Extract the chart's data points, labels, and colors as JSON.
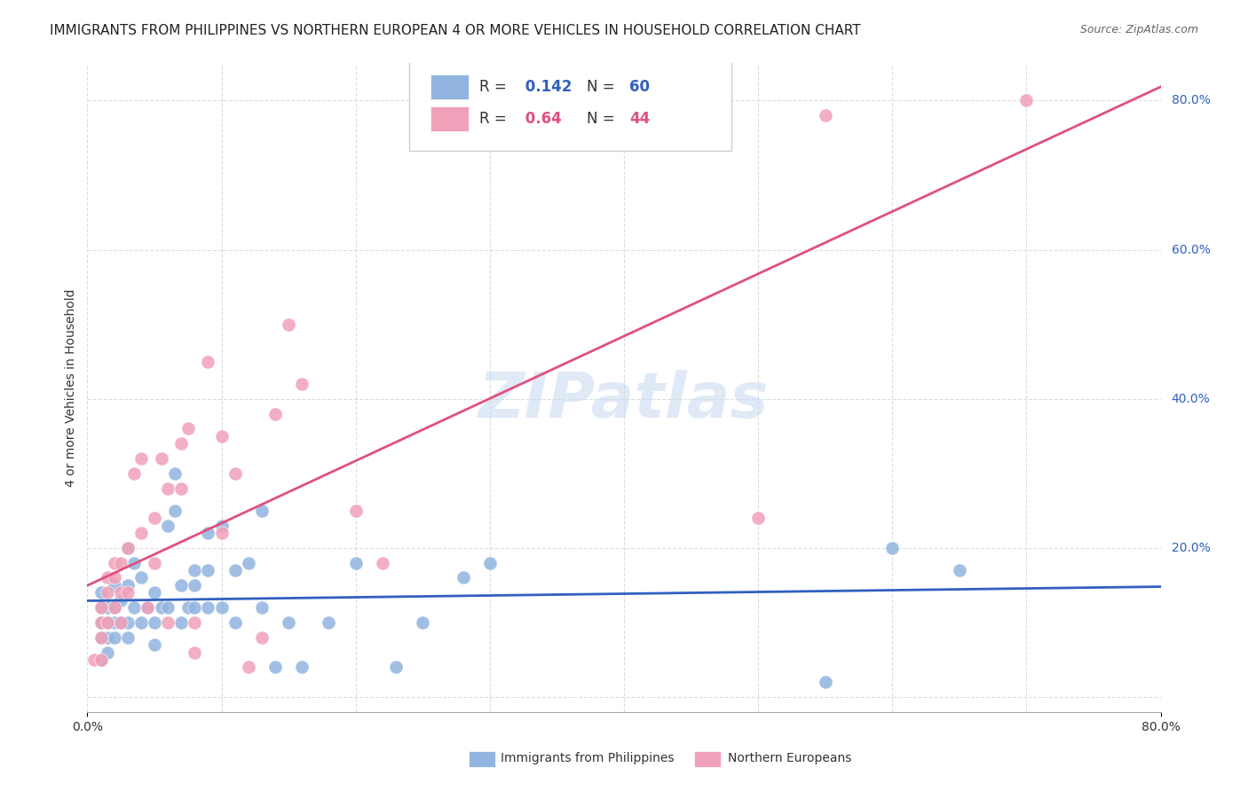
{
  "title": "IMMIGRANTS FROM PHILIPPINES VS NORTHERN EUROPEAN 4 OR MORE VEHICLES IN HOUSEHOLD CORRELATION CHART",
  "source": "Source: ZipAtlas.com",
  "ylabel": "4 or more Vehicles in Household",
  "xlim": [
    0.0,
    0.8
  ],
  "ylim": [
    -0.02,
    0.85
  ],
  "blue_R": 0.142,
  "blue_N": 60,
  "pink_R": 0.64,
  "pink_N": 44,
  "blue_color": "#91b4e0",
  "pink_color": "#f0a0b8",
  "blue_line_color": "#3060c0",
  "pink_line_color": "#e05080",
  "watermark": "ZIPatlas",
  "blue_scatter_x": [
    0.01,
    0.01,
    0.01,
    0.01,
    0.01,
    0.015,
    0.015,
    0.015,
    0.015,
    0.02,
    0.02,
    0.02,
    0.02,
    0.025,
    0.025,
    0.03,
    0.03,
    0.03,
    0.03,
    0.035,
    0.035,
    0.04,
    0.04,
    0.045,
    0.05,
    0.05,
    0.05,
    0.055,
    0.06,
    0.06,
    0.065,
    0.065,
    0.07,
    0.07,
    0.075,
    0.08,
    0.08,
    0.08,
    0.09,
    0.09,
    0.09,
    0.1,
    0.1,
    0.11,
    0.11,
    0.12,
    0.13,
    0.13,
    0.14,
    0.15,
    0.16,
    0.18,
    0.2,
    0.23,
    0.25,
    0.28,
    0.3,
    0.55,
    0.6,
    0.65
  ],
  "blue_scatter_y": [
    0.08,
    0.1,
    0.12,
    0.14,
    0.05,
    0.1,
    0.12,
    0.08,
    0.06,
    0.1,
    0.12,
    0.08,
    0.15,
    0.13,
    0.1,
    0.1,
    0.15,
    0.2,
    0.08,
    0.12,
    0.18,
    0.1,
    0.16,
    0.12,
    0.1,
    0.14,
    0.07,
    0.12,
    0.12,
    0.23,
    0.25,
    0.3,
    0.1,
    0.15,
    0.12,
    0.15,
    0.17,
    0.12,
    0.12,
    0.17,
    0.22,
    0.12,
    0.23,
    0.1,
    0.17,
    0.18,
    0.25,
    0.12,
    0.04,
    0.1,
    0.04,
    0.1,
    0.18,
    0.04,
    0.1,
    0.16,
    0.18,
    0.02,
    0.2,
    0.17
  ],
  "pink_scatter_x": [
    0.005,
    0.01,
    0.01,
    0.01,
    0.01,
    0.015,
    0.015,
    0.015,
    0.02,
    0.02,
    0.02,
    0.025,
    0.025,
    0.025,
    0.03,
    0.03,
    0.035,
    0.04,
    0.04,
    0.045,
    0.05,
    0.05,
    0.055,
    0.06,
    0.06,
    0.07,
    0.07,
    0.075,
    0.08,
    0.08,
    0.09,
    0.1,
    0.1,
    0.11,
    0.12,
    0.13,
    0.14,
    0.15,
    0.16,
    0.2,
    0.22,
    0.5,
    0.55,
    0.7
  ],
  "pink_scatter_y": [
    0.05,
    0.05,
    0.08,
    0.1,
    0.12,
    0.1,
    0.14,
    0.16,
    0.12,
    0.16,
    0.18,
    0.1,
    0.14,
    0.18,
    0.14,
    0.2,
    0.3,
    0.32,
    0.22,
    0.12,
    0.18,
    0.24,
    0.32,
    0.1,
    0.28,
    0.28,
    0.34,
    0.36,
    0.1,
    0.06,
    0.45,
    0.35,
    0.22,
    0.3,
    0.04,
    0.08,
    0.38,
    0.5,
    0.42,
    0.25,
    0.18,
    0.24,
    0.78,
    0.8
  ],
  "background_color": "#ffffff",
  "grid_color": "#dddddd",
  "title_fontsize": 11,
  "axis_label_fontsize": 10,
  "tick_fontsize": 10
}
